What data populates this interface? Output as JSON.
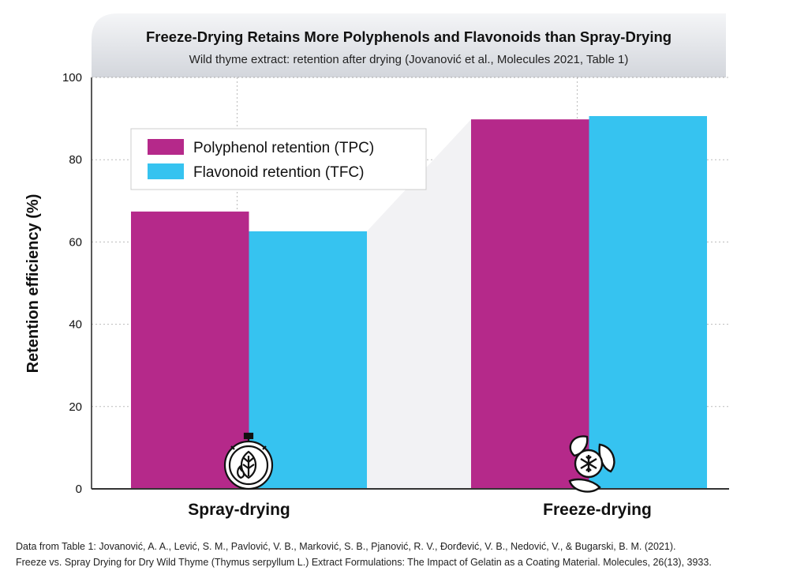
{
  "chart_data": {
    "type": "bar",
    "title": "Freeze-Drying Retains More Polyphenols and Flavonoids than Spray-Drying",
    "subtitle": "Wild thyme extract: retention after drying (Jovanović et al., Molecules 2021, Table 1)",
    "xlabel": "",
    "ylabel": "Retention efficiency (%)",
    "ylim": [
      0,
      100
    ],
    "yticks": [
      0,
      20,
      40,
      60,
      80,
      100
    ],
    "categories": [
      "Spray-drying",
      "Freeze-drying"
    ],
    "category_icons": [
      "stopwatch-leaf-flame-icon",
      "leaves-snowflake-icon"
    ],
    "series": [
      {
        "name": "Polyphenol retention (TPC)",
        "color": "#b5298a",
        "values": [
          67.4,
          89.8
        ]
      },
      {
        "name": "Flavonoid retention (TFC)",
        "color": "#36c3f0",
        "values": [
          62.6,
          90.6
        ]
      }
    ],
    "grid": true,
    "legend_position": "upper-left"
  },
  "footnote": {
    "line1": "Data from Table 1: Jovanović, A. A., Lević, S. M., Pavlović, V. B., Marković, S. B., Pjanović, R. V., Đorđević, V. B., Nedović, V., & Bugarski, B. M. (2021).",
    "line2": "Freeze vs. Spray Drying for Dry Wild Thyme (Thymus serpyllum L.) Extract Formulations: The Impact of Gelatin as a Coating Material. Molecules, 26(13), 3933."
  }
}
